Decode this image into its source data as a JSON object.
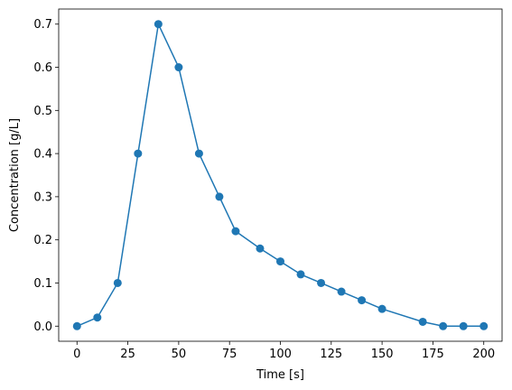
{
  "chart_data": {
    "type": "line",
    "title": "",
    "xlabel": "Time [s]",
    "ylabel": "Concentration [g/L]",
    "xlim": [
      -9,
      209
    ],
    "ylim": [
      -0.035,
      0.735
    ],
    "grid": false,
    "x_ticks": [
      0,
      25,
      50,
      75,
      100,
      125,
      150,
      175,
      200
    ],
    "x_tick_labels": [
      "0",
      "25",
      "50",
      "75",
      "100",
      "125",
      "150",
      "175",
      "200"
    ],
    "y_ticks": [
      0.0,
      0.1,
      0.2,
      0.3,
      0.4,
      0.5,
      0.6,
      0.7
    ],
    "y_tick_labels": [
      "0.0",
      "0.1",
      "0.2",
      "0.3",
      "0.4",
      "0.5",
      "0.6",
      "0.7"
    ],
    "series": [
      {
        "color": "#1f77b4",
        "marker": "circle",
        "x": [
          0,
          10,
          20,
          30,
          40,
          50,
          60,
          70,
          78,
          90,
          100,
          110,
          120,
          130,
          140,
          150,
          170,
          180,
          190,
          200
        ],
        "y": [
          0.0,
          0.02,
          0.1,
          0.4,
          0.7,
          0.6,
          0.4,
          0.3,
          0.22,
          0.18,
          0.15,
          0.12,
          0.1,
          0.08,
          0.06,
          0.04,
          0.01,
          0.0,
          0.0,
          0.0
        ]
      }
    ]
  }
}
